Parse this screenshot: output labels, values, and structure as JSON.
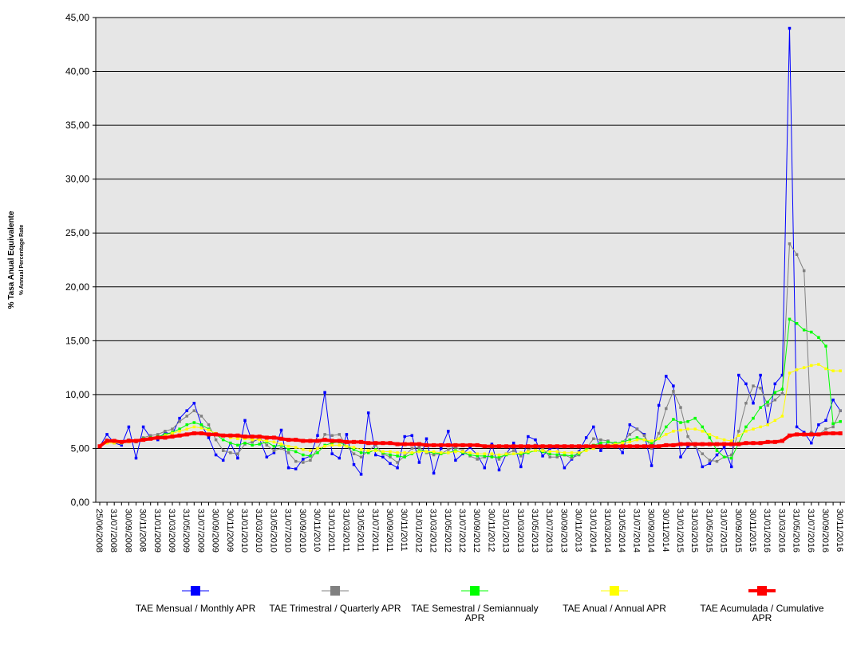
{
  "chart_data": {
    "type": "line",
    "y_label": "% Tasa Anual Equivalente",
    "y_sublabel": "% Annual Percentage Rate",
    "categories": [
      "25/06/2008",
      null,
      "31/07/2008",
      null,
      "30/09/2008",
      null,
      "30/11/2008",
      null,
      "31/01/2009",
      null,
      "31/03/2009",
      null,
      "31/05/2009",
      null,
      "31/07/2009",
      null,
      "30/09/2009",
      null,
      "30/11/2009",
      null,
      "31/01/2010",
      null,
      "31/03/2010",
      null,
      "31/05/2010",
      null,
      "31/07/2010",
      null,
      "30/09/2010",
      null,
      "30/11/2010",
      null,
      "31/01/2011",
      null,
      "31/03/2011",
      null,
      "31/05/2011",
      null,
      "31/07/2011",
      null,
      "30/09/2011",
      null,
      "30/11/2011",
      null,
      "31/01/2012",
      null,
      "31/03/2012",
      null,
      "31/05/2012",
      null,
      "31/07/2012",
      null,
      "30/09/2012",
      null,
      "30/11/2012",
      null,
      "31/01/2013",
      null,
      "31/03/2013",
      null,
      "31/05/2013",
      null,
      "31/07/2013",
      null,
      "30/09/2013",
      null,
      "30/11/2013",
      null,
      "31/01/2014",
      null,
      "31/03/2014",
      null,
      "31/05/2014",
      null,
      "31/07/2014",
      null,
      "30/09/2014",
      null,
      "30/11/2014",
      null,
      "31/01/2015",
      null,
      "31/03/2015",
      null,
      "31/05/2015",
      null,
      "31/07/2015",
      null,
      "30/09/2015",
      null,
      "30/11/2015",
      null,
      "31/01/2016",
      null,
      "31/03/2016",
      null,
      "31/05/2016",
      null,
      "31/07/2016",
      null,
      "30/09/2016",
      null,
      "30/11/2016"
    ],
    "ylim": [
      0,
      45
    ],
    "yticks": [
      {
        "value": 0,
        "label": "0,00"
      },
      {
        "value": 5,
        "label": "5,00"
      },
      {
        "value": 10,
        "label": "10,00"
      },
      {
        "value": 15,
        "label": "15,00"
      },
      {
        "value": 20,
        "label": "20,00"
      },
      {
        "value": 25,
        "label": "25,00"
      },
      {
        "value": 30,
        "label": "30,00"
      },
      {
        "value": 35,
        "label": "35,00"
      },
      {
        "value": 40,
        "label": "40,00"
      },
      {
        "value": 45,
        "label": "45,00"
      }
    ],
    "grid": true,
    "legend": "bottom",
    "series": [
      {
        "name": "TAE Mensual /   Monthly APR",
        "color": "#0000ff",
        "values": [
          5.2,
          6.3,
          5.5,
          5.3,
          7.0,
          4.1,
          7.0,
          6.0,
          5.8,
          6.5,
          6.3,
          7.8,
          8.5,
          9.2,
          7.2,
          6.0,
          4.4,
          3.9,
          5.5,
          4.1,
          7.6,
          5.6,
          5.9,
          4.2,
          4.6,
          6.7,
          3.2,
          3.1,
          4.0,
          4.3,
          6.2,
          10.2,
          4.5,
          4.1,
          6.3,
          3.5,
          2.6,
          8.3,
          4.4,
          4.2,
          3.6,
          3.2,
          6.1,
          6.2,
          3.7,
          5.9,
          2.7,
          5.0,
          6.6,
          3.9,
          4.5,
          5.1,
          4.4,
          3.2,
          5.4,
          3.0,
          4.5,
          5.5,
          3.3,
          6.1,
          5.8,
          4.3,
          5.0,
          5.1,
          3.2,
          4.0,
          4.7,
          6.0,
          7.0,
          4.8,
          5.6,
          5.5,
          4.6,
          7.2,
          6.8,
          6.3,
          3.4,
          9.0,
          11.7,
          10.8,
          4.2,
          5.2,
          5.4,
          3.3,
          3.6,
          4.4,
          5.1,
          3.3,
          11.8,
          11.0,
          9.2,
          11.8,
          7.2,
          11.0,
          11.8,
          44.0,
          7.0,
          6.5,
          5.5,
          7.2,
          7.6,
          9.5,
          8.5
        ]
      },
      {
        "name": "TAE Trimestral / Quarterly APR",
        "color": "#808080",
        "values": [
          5.2,
          5.8,
          5.7,
          5.6,
          5.8,
          5.6,
          6.0,
          6.2,
          6.3,
          6.6,
          6.8,
          7.5,
          8.0,
          8.5,
          8.0,
          7.2,
          5.8,
          4.8,
          4.6,
          4.5,
          5.4,
          5.6,
          6.0,
          5.3,
          4.8,
          5.0,
          4.6,
          3.8,
          3.7,
          3.9,
          5.0,
          6.3,
          6.2,
          6.3,
          5.2,
          4.5,
          4.2,
          4.8,
          5.3,
          4.5,
          4.2,
          3.7,
          4.3,
          5.0,
          5.1,
          4.6,
          4.4,
          4.5,
          4.9,
          5.1,
          4.8,
          4.3,
          4.0,
          4.2,
          4.3,
          4.0,
          4.5,
          4.8,
          4.3,
          4.8,
          5.3,
          5.0,
          4.2,
          4.2,
          4.4,
          4.1,
          4.4,
          5.0,
          5.9,
          5.8,
          5.7,
          5.3,
          5.6,
          6.3,
          6.8,
          6.2,
          5.0,
          6.4,
          8.7,
          10.3,
          8.8,
          6.1,
          5.2,
          4.5,
          3.9,
          3.8,
          4.2,
          4.4,
          6.6,
          9.2,
          10.8,
          10.6,
          9.0,
          9.5,
          10.1,
          24.0,
          23.0,
          21.5,
          6.5,
          6.3,
          6.8,
          7.0,
          8.5
        ]
      },
      {
        "name": "TAE Semestral / Semiannualy APR",
        "color": "#00ff00",
        "values": [
          5.2,
          5.7,
          5.6,
          5.5,
          5.7,
          5.7,
          5.9,
          6.0,
          6.1,
          6.3,
          6.5,
          6.8,
          7.2,
          7.4,
          7.2,
          6.8,
          6.3,
          5.8,
          5.5,
          5.3,
          5.5,
          5.3,
          5.4,
          5.6,
          5.2,
          5.3,
          4.9,
          4.7,
          4.4,
          4.3,
          4.6,
          5.3,
          5.5,
          5.6,
          5.2,
          4.9,
          4.6,
          4.6,
          4.9,
          4.6,
          4.4,
          4.3,
          4.2,
          4.5,
          4.8,
          4.7,
          4.6,
          4.5,
          4.6,
          4.8,
          4.6,
          4.4,
          4.3,
          4.3,
          4.2,
          4.2,
          4.4,
          4.5,
          4.5,
          4.6,
          4.8,
          4.7,
          4.5,
          4.4,
          4.4,
          4.3,
          4.5,
          4.9,
          5.3,
          5.5,
          5.6,
          5.5,
          5.6,
          5.8,
          6.0,
          5.8,
          5.5,
          5.9,
          7.0,
          7.7,
          7.4,
          7.5,
          7.8,
          7.0,
          6.0,
          4.8,
          4.2,
          4.1,
          5.5,
          7.0,
          7.8,
          8.8,
          9.3,
          10.2,
          10.5,
          17.0,
          16.6,
          16.0,
          15.8,
          15.3,
          14.5,
          7.3,
          7.5
        ]
      },
      {
        "name": "TAE Anual / Annual APR",
        "color": "#ffff00",
        "values": [
          5.2,
          5.5,
          5.5,
          5.5,
          5.6,
          5.7,
          5.8,
          5.9,
          6.0,
          6.2,
          6.4,
          6.6,
          6.8,
          7.0,
          6.9,
          6.7,
          6.4,
          6.2,
          6.0,
          5.9,
          5.9,
          5.8,
          5.8,
          5.7,
          5.6,
          5.4,
          5.2,
          5.1,
          4.9,
          4.8,
          5.0,
          5.2,
          5.3,
          5.3,
          5.2,
          5.1,
          4.9,
          4.8,
          4.8,
          4.7,
          4.7,
          4.6,
          4.6,
          4.6,
          4.7,
          4.7,
          4.7,
          4.6,
          4.6,
          4.7,
          4.7,
          4.6,
          4.5,
          4.5,
          4.5,
          4.4,
          4.5,
          4.5,
          4.6,
          4.7,
          4.8,
          4.8,
          4.7,
          4.7,
          4.6,
          4.6,
          4.6,
          4.8,
          5.0,
          5.2,
          5.3,
          5.4,
          5.5,
          5.6,
          5.8,
          5.8,
          5.7,
          5.9,
          6.3,
          6.6,
          6.7,
          6.8,
          6.8,
          6.6,
          6.3,
          6.0,
          5.8,
          5.7,
          6.2,
          6.6,
          6.8,
          7.0,
          7.2,
          7.6,
          8.0,
          12.0,
          12.3,
          12.5,
          12.7,
          12.8,
          12.4,
          12.2,
          12.2
        ]
      },
      {
        "name": "TAE Acumulada / Cumulative APR",
        "color": "#ff0000",
        "values": [
          5.2,
          5.7,
          5.7,
          5.6,
          5.7,
          5.7,
          5.8,
          5.9,
          6.0,
          6.0,
          6.1,
          6.2,
          6.3,
          6.4,
          6.4,
          6.3,
          6.3,
          6.2,
          6.2,
          6.2,
          6.1,
          6.1,
          6.1,
          6.0,
          6.0,
          5.9,
          5.8,
          5.8,
          5.7,
          5.7,
          5.7,
          5.8,
          5.7,
          5.7,
          5.6,
          5.6,
          5.6,
          5.5,
          5.5,
          5.5,
          5.5,
          5.4,
          5.4,
          5.4,
          5.4,
          5.3,
          5.3,
          5.3,
          5.3,
          5.3,
          5.3,
          5.3,
          5.3,
          5.2,
          5.2,
          5.2,
          5.2,
          5.2,
          5.2,
          5.2,
          5.2,
          5.2,
          5.2,
          5.2,
          5.2,
          5.2,
          5.2,
          5.2,
          5.2,
          5.2,
          5.2,
          5.2,
          5.2,
          5.2,
          5.2,
          5.2,
          5.2,
          5.2,
          5.3,
          5.3,
          5.4,
          5.4,
          5.4,
          5.4,
          5.4,
          5.4,
          5.4,
          5.4,
          5.4,
          5.5,
          5.5,
          5.5,
          5.6,
          5.6,
          5.7,
          6.2,
          6.3,
          6.3,
          6.3,
          6.3,
          6.4,
          6.4,
          6.4
        ]
      }
    ]
  }
}
